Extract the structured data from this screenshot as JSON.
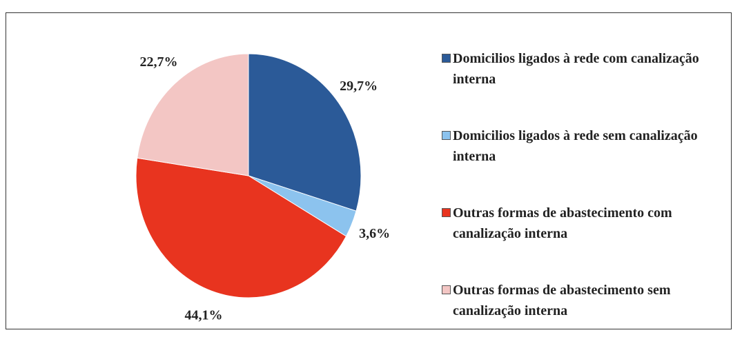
{
  "chart_data": {
    "type": "pie",
    "categories": [
      "Domicilios ligados à rede com canalização interna",
      "Domicilios ligados à rede sem canalização interna",
      "Outras formas de abastecimento com canalização interna",
      "Outras formas de abastecimento sem canalização interna"
    ],
    "values": [
      29.7,
      3.6,
      44.1,
      22.7
    ],
    "value_labels": [
      "29,7%",
      "3,6%",
      "44,1%",
      "22,7%"
    ],
    "colors": [
      "#2b5a98",
      "#8cc3ee",
      "#e8341f",
      "#f3c6c4"
    ],
    "legend": "right"
  }
}
